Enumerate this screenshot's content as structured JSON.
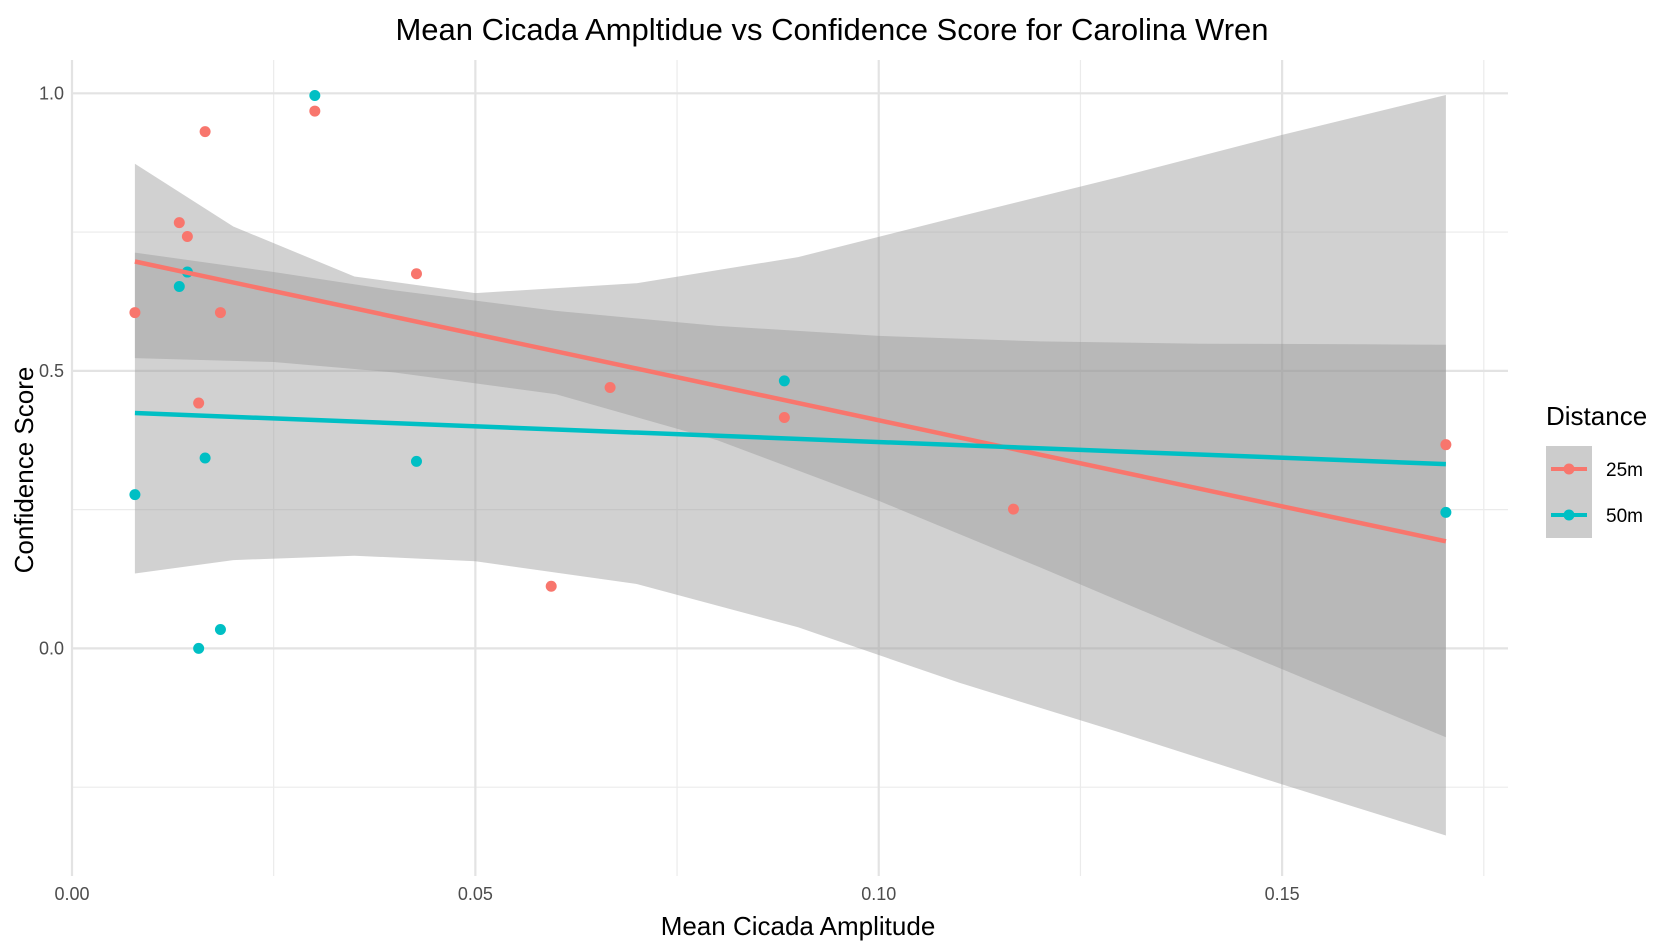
{
  "chart_data": {
    "type": "scatter",
    "title": "Mean Cicada Ampltidue vs Confidence Score for Carolina Wren",
    "xlabel": "Mean Cicada Amplitude",
    "ylabel": "Confidence Score",
    "xlim": [
      0.0,
      0.178
    ],
    "ylim": [
      -0.41,
      1.06
    ],
    "x_ticks": [
      0.0,
      0.05,
      0.1,
      0.15
    ],
    "x_tick_labels": [
      "0.00",
      "0.05",
      "0.10",
      "0.15"
    ],
    "y_ticks": [
      0.0,
      0.5,
      1.0
    ],
    "y_tick_labels": [
      "0.0",
      "0.5",
      "1.0"
    ],
    "grid": true,
    "legend": {
      "title": "Distance",
      "placement": "right"
    },
    "series": [
      {
        "name": "25m",
        "color": "#F8766D",
        "points": [
          {
            "x": 0.0078,
            "y": 0.605
          },
          {
            "x": 0.0133,
            "y": 0.767
          },
          {
            "x": 0.0143,
            "y": 0.742
          },
          {
            "x": 0.0157,
            "y": 0.442
          },
          {
            "x": 0.0165,
            "y": 0.931
          },
          {
            "x": 0.0184,
            "y": 0.605
          },
          {
            "x": 0.0301,
            "y": 0.968
          },
          {
            "x": 0.0427,
            "y": 0.675
          },
          {
            "x": 0.0594,
            "y": 0.112
          },
          {
            "x": 0.0667,
            "y": 0.47
          },
          {
            "x": 0.0883,
            "y": 0.416
          },
          {
            "x": 0.1167,
            "y": 0.251
          },
          {
            "x": 0.1703,
            "y": 0.367
          }
        ],
        "fit": {
          "x": [
            0.0078,
            0.1703
          ],
          "y": [
            0.697,
            0.193
          ]
        },
        "band": {
          "x": [
            0.0078,
            0.025,
            0.04,
            0.06,
            0.08,
            0.1,
            0.12,
            0.14,
            0.16,
            0.1703
          ],
          "upper": [
            0.713,
            0.678,
            0.645,
            0.608,
            0.581,
            0.563,
            0.553,
            0.549,
            0.548,
            0.547
          ],
          "lower": [
            0.523,
            0.516,
            0.497,
            0.458,
            0.375,
            0.266,
            0.146,
            0.023,
            -0.098,
            -0.16
          ]
        }
      },
      {
        "name": "50m",
        "color": "#00BFC4",
        "points": [
          {
            "x": 0.0078,
            "y": 0.277
          },
          {
            "x": 0.0133,
            "y": 0.652
          },
          {
            "x": 0.0143,
            "y": 0.678
          },
          {
            "x": 0.0157,
            "y": 0.0
          },
          {
            "x": 0.0165,
            "y": 0.343
          },
          {
            "x": 0.0184,
            "y": 0.034
          },
          {
            "x": 0.0301,
            "y": 0.996
          },
          {
            "x": 0.0427,
            "y": 0.337
          },
          {
            "x": 0.0883,
            "y": 0.482
          },
          {
            "x": 0.1703,
            "y": 0.245
          }
        ],
        "fit": {
          "x": [
            0.0078,
            0.1703
          ],
          "y": [
            0.424,
            0.332
          ]
        },
        "band": {
          "x": [
            0.0078,
            0.02,
            0.035,
            0.05,
            0.07,
            0.09,
            0.11,
            0.13,
            0.15,
            0.1703
          ],
          "upper": [
            0.873,
            0.76,
            0.67,
            0.64,
            0.658,
            0.705,
            0.778,
            0.85,
            0.925,
            0.997
          ],
          "lower": [
            0.135,
            0.159,
            0.167,
            0.157,
            0.116,
            0.038,
            -0.062,
            -0.152,
            -0.245,
            -0.337
          ]
        }
      }
    ]
  }
}
